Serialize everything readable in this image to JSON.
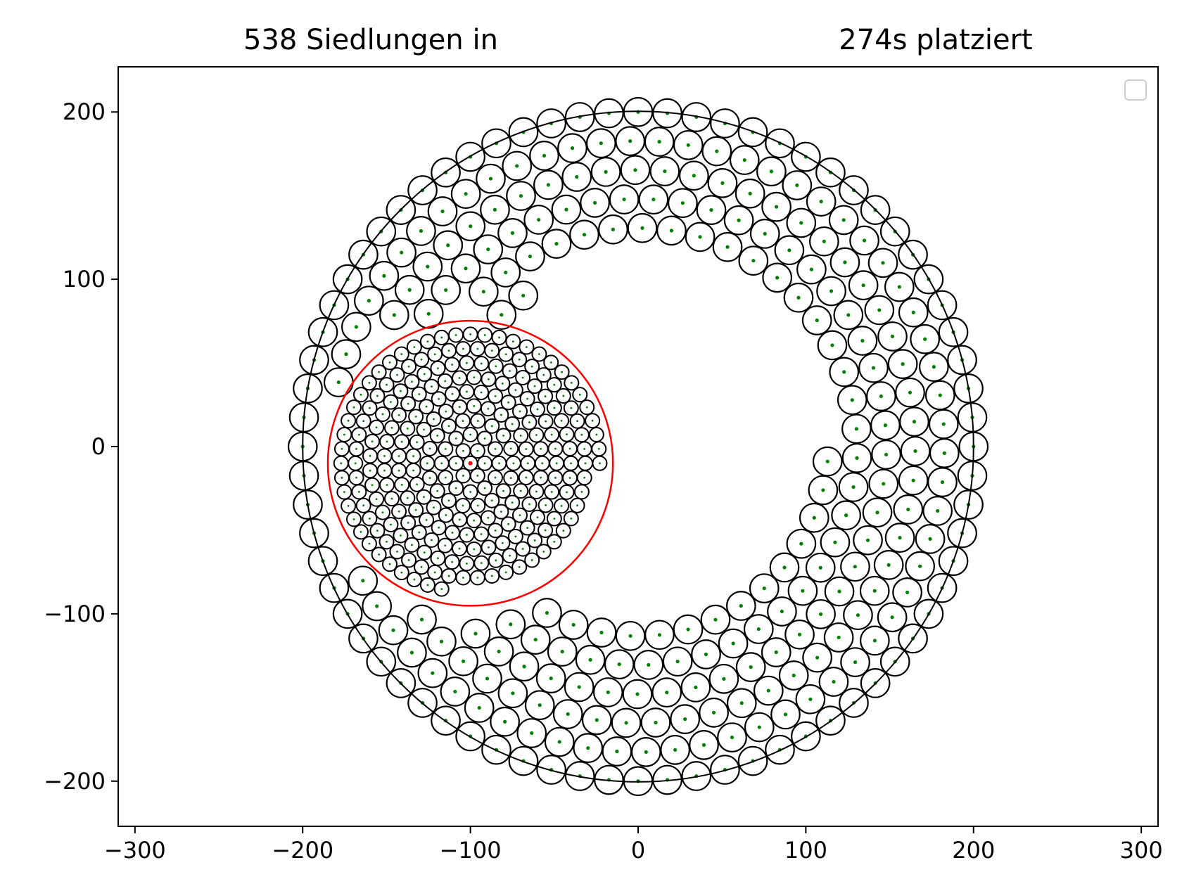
{
  "chart_data": {
    "type": "scatter",
    "title_left": "538 Siedlungen in",
    "title_right": "274s platziert",
    "xlim": [
      -310,
      310
    ],
    "ylim": [
      -227,
      227
    ],
    "x_ticks": [
      -300,
      -200,
      -100,
      0,
      100,
      200,
      300
    ],
    "x_tick_labels": [
      "−300",
      "−200",
      "−100",
      "0",
      "100",
      "200",
      "300"
    ],
    "y_ticks": [
      200,
      100,
      0,
      -100,
      -200
    ],
    "y_tick_labels": [
      "200",
      "100",
      "0",
      "−100",
      "−200"
    ],
    "grid": false,
    "legend": "top-right, empty",
    "colors": {
      "settlement_outline": "#000000",
      "settlement_center": "#008000",
      "inner_region": "#ff0000",
      "outer_region": "#000000"
    },
    "outer_region": {
      "center": [
        0,
        0
      ],
      "radius": 200
    },
    "inner_region": {
      "center": [
        -100,
        -10
      ],
      "radius": 85
    },
    "inner_centroid": [
      -100,
      -10
    ],
    "settlements": {
      "count": 538,
      "outer_count": 274,
      "outer_radius": 8.5,
      "inner_count": 264,
      "inner_radius": 4.2
    }
  }
}
